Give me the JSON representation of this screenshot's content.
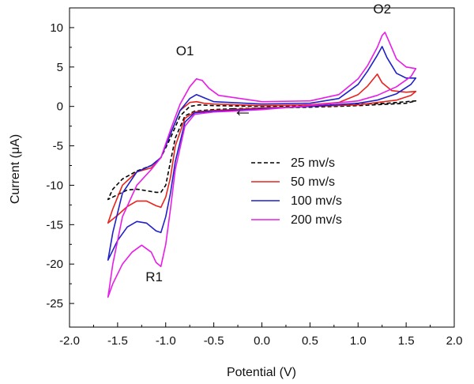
{
  "chart_data": {
    "type": "line",
    "xlabel": "Potential (V)",
    "ylabel": "Current (μA)",
    "xlim": [
      -2.0,
      2.0
    ],
    "ylim": [
      -28,
      12.5
    ],
    "x_ticks": [
      -2.0,
      -1.5,
      -1.0,
      -0.5,
      0.0,
      0.5,
      1.0,
      1.5,
      2.0
    ],
    "x_tick_labels": [
      "-2.0",
      "-1.5",
      "-1.0",
      "-0.5",
      "0.0",
      "0.5",
      "1.0",
      "1.5",
      "2.0"
    ],
    "y_ticks": [
      -25,
      -20,
      -15,
      -10,
      -5,
      0,
      5,
      10
    ],
    "y_tick_labels": [
      "-25",
      "-20",
      "-15",
      "-10",
      "-5",
      "0",
      "5",
      "10"
    ],
    "grid": false,
    "legend_position": "center-right",
    "annotations": [
      {
        "text": "O1",
        "x": -0.8,
        "y": 6.5
      },
      {
        "text": "O2",
        "x": 1.25,
        "y": 11.8
      },
      {
        "text": "R1",
        "x": -1.12,
        "y": -22.2
      },
      {
        "text": "←",
        "x": -0.2,
        "y": -1.3,
        "kind": "arrow"
      }
    ],
    "series": [
      {
        "name": "25 mv/s",
        "color": "#000000",
        "dash": "dashed",
        "points": [
          [
            -0.3,
            -0.3
          ],
          [
            -0.5,
            -0.4
          ],
          [
            -0.7,
            -0.6
          ],
          [
            -0.8,
            -1.2
          ],
          [
            -0.9,
            -4.0
          ],
          [
            -0.95,
            -7.0
          ],
          [
            -1.0,
            -10.0
          ],
          [
            -1.05,
            -10.9
          ],
          [
            -1.1,
            -10.9
          ],
          [
            -1.2,
            -10.7
          ],
          [
            -1.3,
            -10.5
          ],
          [
            -1.4,
            -10.6
          ],
          [
            -1.5,
            -11.2
          ],
          [
            -1.6,
            -11.8
          ],
          [
            -1.55,
            -10.5
          ],
          [
            -1.45,
            -9.2
          ],
          [
            -1.3,
            -8.2
          ],
          [
            -1.15,
            -7.5
          ],
          [
            -1.05,
            -6.5
          ],
          [
            -0.95,
            -4.0
          ],
          [
            -0.85,
            -1.2
          ],
          [
            -0.75,
            0.0
          ],
          [
            -0.65,
            0.2
          ],
          [
            -0.5,
            0.1
          ],
          [
            0.0,
            0.0
          ],
          [
            0.5,
            0.1
          ],
          [
            1.0,
            0.3
          ],
          [
            1.3,
            0.4
          ],
          [
            1.6,
            0.7
          ],
          [
            1.5,
            0.4
          ],
          [
            1.0,
            0.1
          ],
          [
            0.5,
            -0.1
          ],
          [
            0.0,
            -0.2
          ],
          [
            -0.3,
            -0.3
          ]
        ]
      },
      {
        "name": "50 mv/s",
        "color": "#e8231d",
        "dash": "solid",
        "points": [
          [
            -0.3,
            -0.4
          ],
          [
            -0.5,
            -0.5
          ],
          [
            -0.7,
            -0.7
          ],
          [
            -0.8,
            -1.5
          ],
          [
            -0.9,
            -5.0
          ],
          [
            -0.95,
            -9.0
          ],
          [
            -1.0,
            -11.5
          ],
          [
            -1.05,
            -12.8
          ],
          [
            -1.1,
            -12.6
          ],
          [
            -1.2,
            -12.0
          ],
          [
            -1.3,
            -12.0
          ],
          [
            -1.4,
            -12.7
          ],
          [
            -1.5,
            -13.8
          ],
          [
            -1.6,
            -14.8
          ],
          [
            -1.55,
            -13.0
          ],
          [
            -1.45,
            -10.0
          ],
          [
            -1.3,
            -8.3
          ],
          [
            -1.15,
            -7.8
          ],
          [
            -1.05,
            -6.5
          ],
          [
            -0.95,
            -3.5
          ],
          [
            -0.85,
            -0.5
          ],
          [
            -0.75,
            0.5
          ],
          [
            -0.68,
            0.6
          ],
          [
            -0.6,
            0.4
          ],
          [
            -0.5,
            0.3
          ],
          [
            0.0,
            0.1
          ],
          [
            0.5,
            0.2
          ],
          [
            0.8,
            0.5
          ],
          [
            1.0,
            1.5
          ],
          [
            1.1,
            2.6
          ],
          [
            1.2,
            4.1
          ],
          [
            1.25,
            3.0
          ],
          [
            1.35,
            2.0
          ],
          [
            1.5,
            1.8
          ],
          [
            1.6,
            1.9
          ],
          [
            1.55,
            1.4
          ],
          [
            1.4,
            0.8
          ],
          [
            1.2,
            0.5
          ],
          [
            1.0,
            0.2
          ],
          [
            0.5,
            0.0
          ],
          [
            0.0,
            -0.2
          ],
          [
            -0.3,
            -0.4
          ]
        ]
      },
      {
        "name": "100 mv/s",
        "color": "#1f20c9",
        "dash": "solid",
        "points": [
          [
            -0.3,
            -0.5
          ],
          [
            -0.5,
            -0.6
          ],
          [
            -0.7,
            -0.8
          ],
          [
            -0.8,
            -2.0
          ],
          [
            -0.9,
            -7.0
          ],
          [
            -0.95,
            -11.0
          ],
          [
            -1.0,
            -14.0
          ],
          [
            -1.05,
            -16.0
          ],
          [
            -1.1,
            -15.8
          ],
          [
            -1.2,
            -14.8
          ],
          [
            -1.3,
            -14.6
          ],
          [
            -1.4,
            -15.3
          ],
          [
            -1.5,
            -17.0
          ],
          [
            -1.6,
            -19.5
          ],
          [
            -1.55,
            -16.0
          ],
          [
            -1.45,
            -11.0
          ],
          [
            -1.3,
            -8.3
          ],
          [
            -1.15,
            -7.5
          ],
          [
            -1.05,
            -6.5
          ],
          [
            -0.95,
            -3.5
          ],
          [
            -0.85,
            -0.5
          ],
          [
            -0.75,
            1.0
          ],
          [
            -0.68,
            1.5
          ],
          [
            -0.6,
            1.1
          ],
          [
            -0.5,
            0.6
          ],
          [
            0.0,
            0.3
          ],
          [
            0.5,
            0.4
          ],
          [
            0.8,
            1.0
          ],
          [
            1.0,
            2.8
          ],
          [
            1.1,
            4.5
          ],
          [
            1.2,
            6.5
          ],
          [
            1.25,
            7.6
          ],
          [
            1.3,
            6.2
          ],
          [
            1.4,
            4.2
          ],
          [
            1.5,
            3.6
          ],
          [
            1.6,
            3.6
          ],
          [
            1.55,
            2.8
          ],
          [
            1.4,
            1.6
          ],
          [
            1.2,
            0.8
          ],
          [
            1.0,
            0.4
          ],
          [
            0.5,
            0.0
          ],
          [
            0.0,
            -0.3
          ],
          [
            -0.3,
            -0.5
          ]
        ]
      },
      {
        "name": "200 mv/s",
        "color": "#e81de8",
        "dash": "solid",
        "points": [
          [
            -0.3,
            -0.6
          ],
          [
            -0.5,
            -0.7
          ],
          [
            -0.7,
            -1.0
          ],
          [
            -0.8,
            -2.5
          ],
          [
            -0.9,
            -8.0
          ],
          [
            -0.95,
            -13.0
          ],
          [
            -1.0,
            -17.5
          ],
          [
            -1.05,
            -20.3
          ],
          [
            -1.1,
            -19.8
          ],
          [
            -1.15,
            -18.5
          ],
          [
            -1.25,
            -17.6
          ],
          [
            -1.35,
            -18.5
          ],
          [
            -1.45,
            -20.0
          ],
          [
            -1.55,
            -22.5
          ],
          [
            -1.6,
            -24.2
          ],
          [
            -1.55,
            -20.0
          ],
          [
            -1.45,
            -14.0
          ],
          [
            -1.3,
            -10.0
          ],
          [
            -1.15,
            -8.0
          ],
          [
            -1.05,
            -6.5
          ],
          [
            -0.95,
            -3.0
          ],
          [
            -0.85,
            0.3
          ],
          [
            -0.75,
            2.5
          ],
          [
            -0.68,
            3.5
          ],
          [
            -0.62,
            3.3
          ],
          [
            -0.55,
            2.3
          ],
          [
            -0.45,
            1.4
          ],
          [
            0.0,
            0.6
          ],
          [
            0.5,
            0.7
          ],
          [
            0.8,
            1.5
          ],
          [
            1.0,
            3.5
          ],
          [
            1.1,
            5.2
          ],
          [
            1.2,
            7.5
          ],
          [
            1.25,
            9.0
          ],
          [
            1.28,
            9.4
          ],
          [
            1.32,
            8.3
          ],
          [
            1.4,
            6.0
          ],
          [
            1.5,
            5.0
          ],
          [
            1.6,
            4.8
          ],
          [
            1.55,
            3.8
          ],
          [
            1.4,
            2.5
          ],
          [
            1.2,
            1.4
          ],
          [
            1.0,
            0.7
          ],
          [
            0.5,
            0.1
          ],
          [
            0.0,
            -0.4
          ],
          [
            -0.3,
            -0.6
          ]
        ]
      }
    ]
  }
}
